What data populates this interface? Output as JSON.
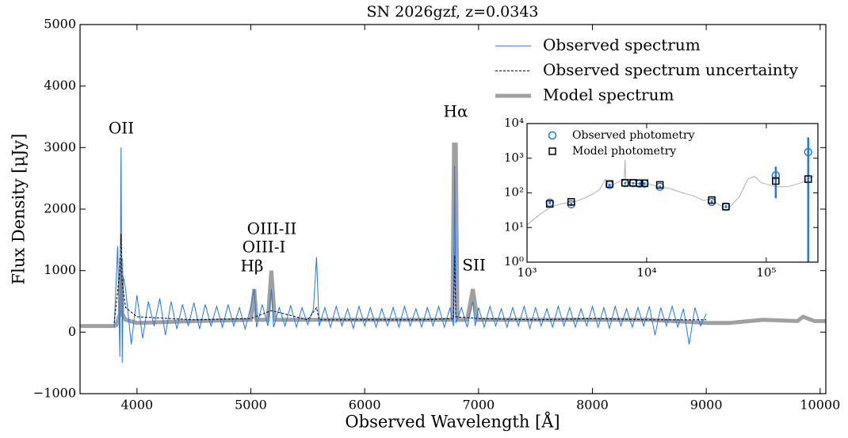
{
  "chart_data": [
    {
      "type": "line",
      "title": "SN 2026gzf, z=0.0343",
      "xlabel": "Observed Wavelength [Å]",
      "ylabel": "Flux Density [μJy]",
      "xlim": [
        3500,
        10050
      ],
      "ylim": [
        -1000,
        5000
      ],
      "xticks": [
        4000,
        5000,
        6000,
        7000,
        8000,
        9000,
        10000
      ],
      "yticks": [
        {
          "value": -1000,
          "label": "−1000"
        },
        0,
        1000,
        2000,
        3000,
        4000,
        5000
      ],
      "legend": "upper right",
      "annotations": [
        "OII",
        "OIII-II",
        "OIII-I",
        "Hβ",
        "Hα",
        "SII"
      ],
      "series": [
        {
          "name": "Observed spectrum",
          "color": "#1f78f0",
          "width": 1,
          "dashed": false,
          "x": [
            3800,
            3830,
            3850,
            3860,
            3870,
            3880,
            3900,
            3950,
            4000,
            4050,
            4100,
            4150,
            4200,
            4250,
            4300,
            4350,
            4400,
            4450,
            4500,
            4550,
            4600,
            4650,
            4700,
            4750,
            4800,
            4850,
            4900,
            4950,
            5000,
            5030,
            5050,
            5100,
            5150,
            5180,
            5200,
            5250,
            5300,
            5350,
            5400,
            5450,
            5500,
            5550,
            5577,
            5600,
            5650,
            5700,
            5750,
            5800,
            5850,
            5900,
            5950,
            6000,
            6050,
            6100,
            6150,
            6200,
            6250,
            6300,
            6350,
            6400,
            6450,
            6500,
            6550,
            6600,
            6650,
            6700,
            6750,
            6780,
            6790,
            6800,
            6850,
            6900,
            6950,
            6970,
            7000,
            7050,
            7100,
            7150,
            7200,
            7250,
            7300,
            7350,
            7400,
            7450,
            7500,
            7550,
            7600,
            7650,
            7700,
            7750,
            7800,
            7850,
            7900,
            7950,
            8000,
            8050,
            8100,
            8150,
            8200,
            8250,
            8300,
            8350,
            8400,
            8450,
            8500,
            8550,
            8600,
            8650,
            8700,
            8750,
            8800,
            8850,
            8900,
            8950,
            9000
          ],
          "values": [
            80,
            1400,
            -400,
            3000,
            -500,
            900,
            700,
            -200,
            600,
            -100,
            500,
            100,
            550,
            -50,
            500,
            50,
            450,
            100,
            480,
            50,
            450,
            100,
            420,
            80,
            450,
            100,
            400,
            50,
            420,
            700,
            80,
            450,
            100,
            700,
            80,
            400,
            100,
            430,
            80,
            400,
            120,
            380,
            1220,
            100,
            400,
            80,
            420,
            100,
            380,
            60,
            420,
            100,
            400,
            80,
            380,
            100,
            400,
            80,
            420,
            100,
            380,
            80,
            400,
            100,
            420,
            80,
            400,
            100,
            2700,
            150,
            400,
            80,
            500,
            100,
            400,
            80,
            420,
            100,
            380,
            80,
            400,
            100,
            420,
            60,
            400,
            100,
            380,
            80,
            420,
            100,
            400,
            80,
            380,
            100,
            420,
            80,
            400,
            60,
            420,
            100,
            380,
            80,
            400,
            100,
            420,
            -50,
            400,
            100,
            420,
            80,
            380,
            -200,
            400,
            100,
            300
          ]
        },
        {
          "name": "Observed spectrum uncertainty",
          "color": "#000000",
          "width": 1,
          "dashed": true,
          "x": [
            3800,
            3850,
            3860,
            3870,
            3900,
            4000,
            4500,
            5000,
            5180,
            5500,
            5577,
            5600,
            6000,
            6500,
            6780,
            6790,
            6800,
            7000,
            7500,
            8000,
            8500,
            9000
          ],
          "values": [
            150,
            1000,
            1600,
            800,
            400,
            250,
            200,
            220,
            350,
            200,
            400,
            200,
            200,
            200,
            220,
            1250,
            250,
            220,
            200,
            220,
            200,
            200
          ]
        },
        {
          "name": "Model spectrum",
          "color": "#a0a0a0",
          "width": 5,
          "dashed": false,
          "x": [
            3500,
            3800,
            3820,
            3850,
            3860,
            3870,
            3900,
            4000,
            4500,
            5000,
            5030,
            5050,
            5150,
            5180,
            5210,
            5500,
            6000,
            6500,
            6770,
            6785,
            6800,
            6815,
            6900,
            6950,
            6990,
            7500,
            8000,
            8500,
            9000,
            9200,
            9500,
            9800,
            9850,
            9950,
            10050
          ],
          "values": [
            100,
            100,
            120,
            300,
            1200,
            300,
            200,
            150,
            180,
            200,
            700,
            200,
            200,
            1000,
            200,
            200,
            200,
            200,
            200,
            3050,
            3050,
            200,
            200,
            700,
            200,
            200,
            200,
            200,
            150,
            150,
            200,
            180,
            250,
            180,
            180
          ]
        }
      ]
    },
    {
      "type": "scatter",
      "xscale": "log",
      "yscale": "log",
      "xlim": [
        1000,
        270000
      ],
      "ylim": [
        1,
        10000
      ],
      "xticks": [
        {
          "value": 1000,
          "label": "10³"
        },
        {
          "value": 10000,
          "label": "10⁴"
        },
        {
          "value": 100000,
          "label": "10⁵"
        }
      ],
      "yticks": [
        {
          "value": 1,
          "label": "10⁰"
        },
        {
          "value": 10,
          "label": "10¹"
        },
        {
          "value": 100,
          "label": "10²"
        },
        {
          "value": 1000,
          "label": "10³"
        },
        {
          "value": 10000,
          "label": "10⁴"
        }
      ],
      "legend": "upper left",
      "series": [
        {
          "name": "Observed photometry",
          "color": "#1f78f0",
          "marker": "circle",
          "x": [
            1550,
            2340,
            4900,
            6600,
            7700,
            8700,
            9600,
            12900,
            35000,
            46000,
            120000,
            224000
          ],
          "values": [
            52,
            47,
            170,
            190,
            190,
            185,
            185,
            150,
            55,
            40,
            320,
            1500
          ],
          "errors": [
            5,
            5,
            15,
            15,
            15,
            15,
            15,
            12,
            6,
            4,
            250,
            2500
          ]
        },
        {
          "name": "Model photometry",
          "color": "#000000",
          "marker": "square",
          "x": [
            1550,
            2340,
            4900,
            6600,
            7700,
            8700,
            9600,
            12900,
            35000,
            46000,
            120000,
            224000
          ],
          "values": [
            48,
            55,
            180,
            195,
            195,
            190,
            190,
            170,
            62,
            40,
            220,
            250
          ]
        }
      ],
      "model_sed": {
        "color": "#b0b0b0",
        "x": [
          1000,
          1300,
          1600,
          2000,
          2500,
          3000,
          3500,
          4000,
          4300,
          4500,
          4800,
          5500,
          6500,
          6600,
          6700,
          8000,
          10000,
          13000,
          16000,
          20000,
          25000,
          30000,
          35000,
          40000,
          46000,
          50000,
          60000,
          70000,
          80000,
          90000,
          100000,
          120000,
          150000,
          200000,
          224000,
          250000
        ],
        "values": [
          12,
          25,
          40,
          50,
          55,
          70,
          90,
          120,
          180,
          250,
          160,
          190,
          250,
          900,
          200,
          190,
          180,
          150,
          130,
          100,
          80,
          60,
          70,
          45,
          38,
          40,
          80,
          250,
          300,
          200,
          180,
          150,
          150,
          200,
          260,
          300
        ]
      }
    }
  ]
}
